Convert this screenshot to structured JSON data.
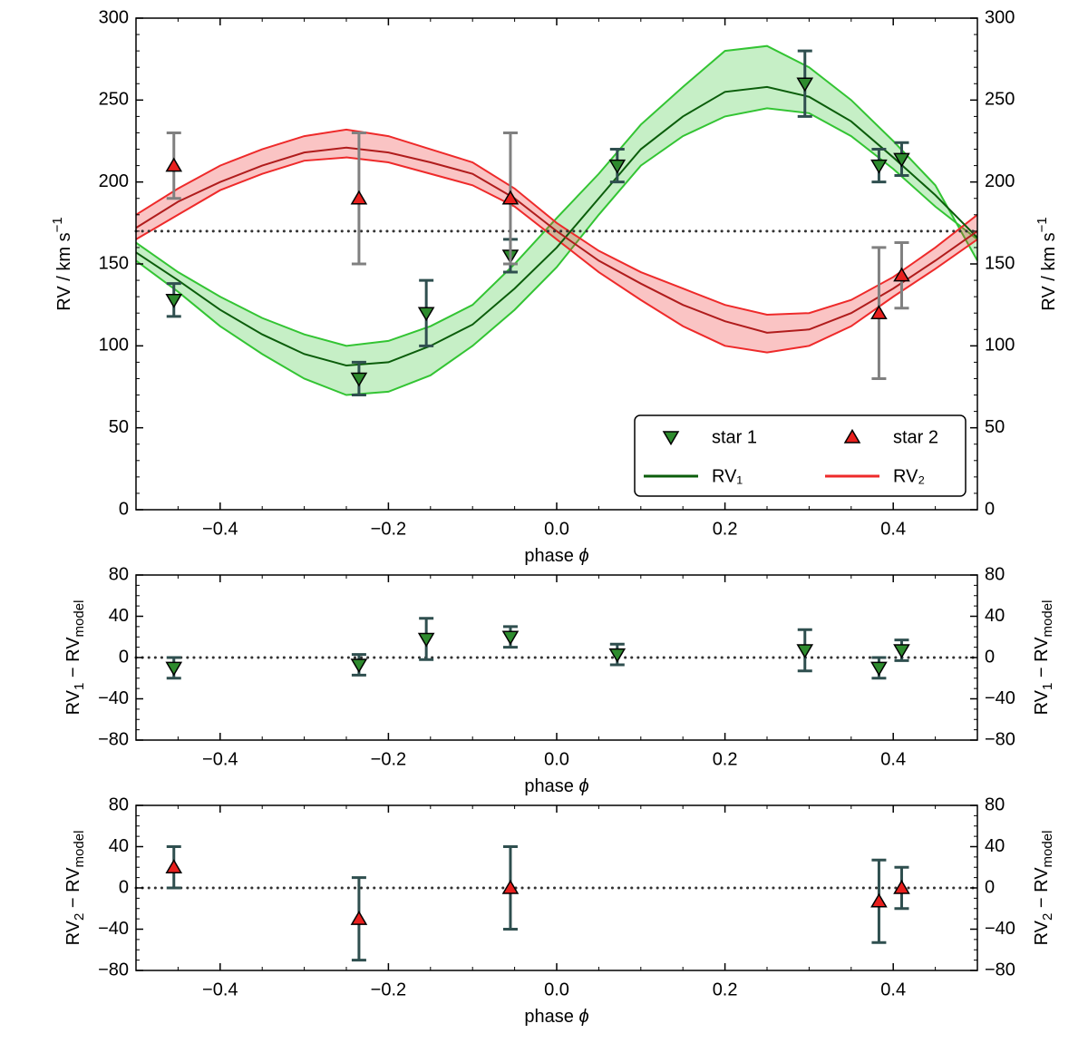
{
  "chart_data": [
    {
      "type": "line",
      "xlabel": [
        {
          "text": "phase "
        },
        {
          "text": "ϕ",
          "style": "italic"
        }
      ],
      "ylabel": [
        {
          "text": "RV  /  km s"
        },
        {
          "text": "−1",
          "shift": "super"
        }
      ],
      "xlim": [
        -0.5,
        0.5
      ],
      "xticks": [
        {
          "value": -0.4,
          "label": "−0.4"
        },
        {
          "value": -0.2,
          "label": "−0.2"
        },
        {
          "value": 0,
          "label": "0.0"
        },
        0.2,
        0.4
      ],
      "ylim": [
        0,
        300
      ],
      "yticks": [
        0,
        50,
        100,
        150,
        200,
        250,
        300
      ],
      "minor_divisions": {
        "x": 4,
        "y": 5
      },
      "hline": 170,
      "legend": "lower right",
      "series": [
        {
          "name": "star 1",
          "color": "#2e8b2e",
          "marker": "triangle-down",
          "error_color": "#2f4f4f",
          "x": [
            -0.455,
            -0.235,
            -0.155,
            -0.055,
            0.072,
            0.295,
            0.383,
            0.41
          ],
          "values": [
            128,
            80,
            120,
            155,
            210,
            260,
            210,
            214
          ],
          "errors": [
            10,
            10,
            20,
            10,
            10,
            20,
            10,
            10
          ]
        },
        {
          "name": "star 2",
          "color": "#e8201e",
          "marker": "triangle-up",
          "error_color": "#808080",
          "x": [
            -0.455,
            -0.235,
            -0.055,
            0.383,
            0.41
          ],
          "values": [
            210,
            190,
            190,
            120,
            143
          ],
          "errors": [
            20,
            40,
            40,
            40,
            20
          ]
        },
        {
          "name": "RV₁",
          "color": "#0b5d0b",
          "band_color": "#33c433",
          "x": [
            -0.5,
            -0.45,
            -0.4,
            -0.35,
            -0.3,
            -0.25,
            -0.2,
            -0.15,
            -0.1,
            -0.05,
            0,
            0.05,
            0.1,
            0.15,
            0.2,
            0.25,
            0.3,
            0.35,
            0.4,
            0.45,
            0.5
          ],
          "values": [
            157,
            140,
            122,
            107,
            95,
            88,
            90,
            100,
            113,
            135,
            160,
            190,
            220,
            240,
            255,
            258,
            252,
            237,
            215,
            192,
            166
          ],
          "band_high": [
            163,
            145,
            130,
            117,
            107,
            100,
            103,
            112,
            125,
            150,
            178,
            205,
            235,
            258,
            280,
            283,
            270,
            250,
            225,
            198,
            152
          ],
          "band_low": [
            152,
            133,
            112,
            95,
            80,
            70,
            72,
            82,
            100,
            122,
            148,
            180,
            210,
            228,
            240,
            245,
            242,
            228,
            208,
            185,
            165
          ]
        },
        {
          "name": "RV₂",
          "color": "#b01c1c",
          "band_color": "#ee2a2a",
          "x": [
            -0.5,
            -0.45,
            -0.4,
            -0.35,
            -0.3,
            -0.25,
            -0.2,
            -0.15,
            -0.1,
            -0.05,
            0,
            0.05,
            0.1,
            0.15,
            0.2,
            0.25,
            0.3,
            0.35,
            0.4,
            0.45,
            0.5
          ],
          "values": [
            172,
            188,
            200,
            210,
            218,
            221,
            218,
            212,
            205,
            190,
            170,
            152,
            138,
            125,
            115,
            108,
            110,
            120,
            135,
            152,
            170
          ],
          "band_high": [
            180,
            196,
            210,
            220,
            228,
            232,
            228,
            220,
            212,
            196,
            175,
            158,
            145,
            135,
            125,
            119,
            120,
            128,
            142,
            160,
            180
          ],
          "band_low": [
            165,
            180,
            195,
            205,
            213,
            215,
            212,
            205,
            198,
            185,
            165,
            145,
            128,
            112,
            100,
            96,
            100,
            112,
            130,
            147,
            165
          ]
        }
      ]
    },
    {
      "type": "scatter",
      "xlabel": [
        {
          "text": "phase "
        },
        {
          "text": "ϕ",
          "style": "italic"
        }
      ],
      "ylabel": [
        {
          "text": "RV"
        },
        {
          "text": "1",
          "shift": "sub"
        },
        {
          "text": " − RV"
        },
        {
          "text": "model",
          "shift": "sub"
        }
      ],
      "xlim": [
        -0.5,
        0.5
      ],
      "xticks": [
        {
          "value": -0.4,
          "label": "−0.4"
        },
        {
          "value": -0.2,
          "label": "−0.2"
        },
        {
          "value": 0,
          "label": "0.0"
        },
        0.2,
        0.4
      ],
      "ylim": [
        -80,
        80
      ],
      "yticks": [
        {
          "value": -80,
          "label": "−80"
        },
        {
          "value": -40,
          "label": "−40"
        },
        0,
        40,
        80
      ],
      "minor_divisions": {
        "x": 4,
        "y": 4
      },
      "hline": 0,
      "series": [
        {
          "name": "star 1",
          "color": "#2e8b2e",
          "marker": "triangle-down",
          "error_color": "#2f4f4f",
          "x": [
            -0.455,
            -0.235,
            -0.155,
            -0.055,
            0.072,
            0.295,
            0.383,
            0.41
          ],
          "values": [
            -10,
            -7,
            18,
            20,
            3,
            7,
            -10,
            7
          ],
          "errors": [
            10,
            10,
            20,
            10,
            10,
            20,
            10,
            10
          ]
        }
      ]
    },
    {
      "type": "scatter",
      "xlabel": [
        {
          "text": "phase "
        },
        {
          "text": "ϕ",
          "style": "italic"
        }
      ],
      "ylabel": [
        {
          "text": "RV"
        },
        {
          "text": "2",
          "shift": "sub"
        },
        {
          "text": " − RV"
        },
        {
          "text": "model",
          "shift": "sub"
        }
      ],
      "xlim": [
        -0.5,
        0.5
      ],
      "xticks": [
        {
          "value": -0.4,
          "label": "−0.4"
        },
        {
          "value": -0.2,
          "label": "−0.2"
        },
        {
          "value": 0,
          "label": "0.0"
        },
        0.2,
        0.4
      ],
      "ylim": [
        -80,
        80
      ],
      "yticks": [
        {
          "value": -80,
          "label": "−80"
        },
        {
          "value": -40,
          "label": "−40"
        },
        0,
        40,
        80
      ],
      "minor_divisions": {
        "x": 4,
        "y": 4
      },
      "hline": 0,
      "series": [
        {
          "name": "star 2",
          "color": "#e8201e",
          "marker": "triangle-up",
          "error_color": "#2f4f4f",
          "x": [
            -0.455,
            -0.235,
            -0.055,
            0.383,
            0.41
          ],
          "values": [
            20,
            -30,
            0,
            -13,
            0
          ],
          "errors": [
            20,
            40,
            40,
            40,
            20
          ]
        }
      ]
    }
  ]
}
